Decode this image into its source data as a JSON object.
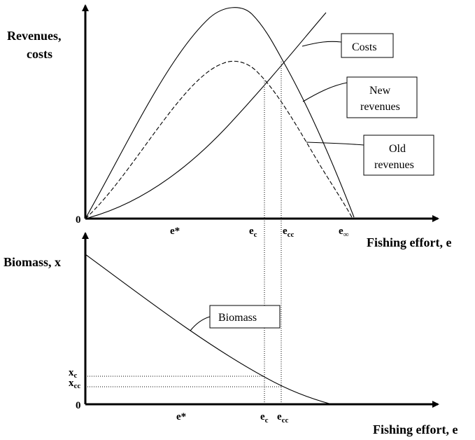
{
  "top_panel": {
    "y_title_line1": "Revenues,",
    "y_title_line2": "costs",
    "x_title": "Fishing effort, e",
    "origin": "0",
    "ticks": {
      "e_star": "e*",
      "e_c": "e",
      "e_c_sub": "c",
      "e_cc": "e",
      "e_cc_sub": "cc",
      "e_inf": "e",
      "e_inf_sub": "∞"
    },
    "labels": {
      "costs": "Costs",
      "new_revenues_line1": "New",
      "new_revenues_line2": "revenues",
      "old_revenues_line1": "Old",
      "old_revenues_line2": "revenues"
    }
  },
  "bottom_panel": {
    "y_title": "Biomass, x",
    "x_title": "Fishing effort, e",
    "origin": "0",
    "ticks": {
      "e_star": "e*",
      "e_c": "e",
      "e_c_sub": "c",
      "e_cc": "e",
      "e_cc_sub": "cc",
      "x_c": "x",
      "x_c_sub": "c",
      "x_cc": "x",
      "x_cc_sub": "cc"
    },
    "labels": {
      "biomass": "Biomass"
    }
  },
  "styles": {
    "curve_stroke": "#000000",
    "background": "#ffffff"
  }
}
